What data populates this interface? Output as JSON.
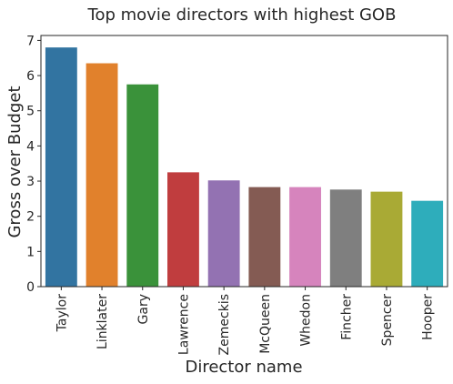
{
  "chart_data": {
    "type": "bar",
    "title": "Top movie directors with highest GOB",
    "xlabel": "Director name",
    "ylabel": "Gross over Budget",
    "categories": [
      "Taylor",
      "Linklater",
      "Gary",
      "Lawrence",
      "Zemeckis",
      "McQueen",
      "Whedon",
      "Fincher",
      "Spencer",
      "Hooper"
    ],
    "values": [
      6.8,
      6.35,
      5.75,
      3.25,
      3.02,
      2.83,
      2.83,
      2.76,
      2.7,
      2.44
    ],
    "colors": [
      "#3274a1",
      "#e1812c",
      "#3a923a",
      "#c03d3e",
      "#9372b2",
      "#845b53",
      "#d684bd",
      "#7f7f7f",
      "#a9aa35",
      "#2eadbb"
    ],
    "ylim": [
      0,
      7.14
    ],
    "yticks": [
      0,
      1,
      2,
      3,
      4,
      5,
      6,
      7
    ],
    "grid": false,
    "legend": false
  }
}
